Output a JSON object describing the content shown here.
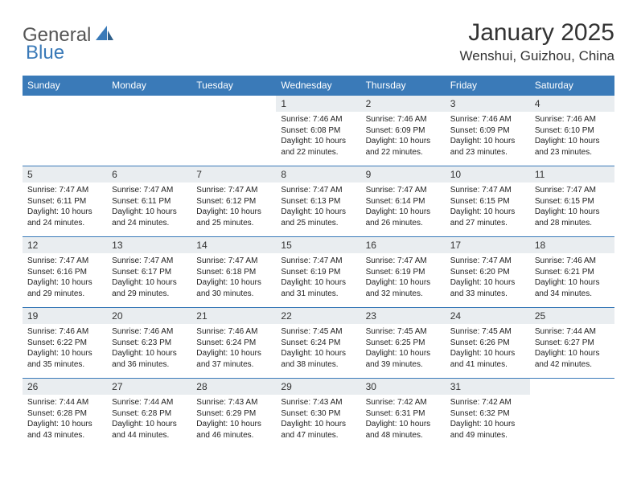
{
  "logo": {
    "text_general": "General",
    "text_blue": "Blue"
  },
  "title": "January 2025",
  "location": "Wenshui, Guizhou, China",
  "colors": {
    "header_bg": "#3a7ab8",
    "header_fg": "#ffffff",
    "daynum_bg": "#e9edf0",
    "rule": "#3a7ab8",
    "logo_gray": "#555555",
    "logo_blue": "#3a7ab8"
  },
  "day_headers": [
    "Sunday",
    "Monday",
    "Tuesday",
    "Wednesday",
    "Thursday",
    "Friday",
    "Saturday"
  ],
  "weeks": [
    [
      {
        "n": "",
        "t": ""
      },
      {
        "n": "",
        "t": ""
      },
      {
        "n": "",
        "t": ""
      },
      {
        "n": "1",
        "t": "Sunrise: 7:46 AM\nSunset: 6:08 PM\nDaylight: 10 hours and 22 minutes."
      },
      {
        "n": "2",
        "t": "Sunrise: 7:46 AM\nSunset: 6:09 PM\nDaylight: 10 hours and 22 minutes."
      },
      {
        "n": "3",
        "t": "Sunrise: 7:46 AM\nSunset: 6:09 PM\nDaylight: 10 hours and 23 minutes."
      },
      {
        "n": "4",
        "t": "Sunrise: 7:46 AM\nSunset: 6:10 PM\nDaylight: 10 hours and 23 minutes."
      }
    ],
    [
      {
        "n": "5",
        "t": "Sunrise: 7:47 AM\nSunset: 6:11 PM\nDaylight: 10 hours and 24 minutes."
      },
      {
        "n": "6",
        "t": "Sunrise: 7:47 AM\nSunset: 6:11 PM\nDaylight: 10 hours and 24 minutes."
      },
      {
        "n": "7",
        "t": "Sunrise: 7:47 AM\nSunset: 6:12 PM\nDaylight: 10 hours and 25 minutes."
      },
      {
        "n": "8",
        "t": "Sunrise: 7:47 AM\nSunset: 6:13 PM\nDaylight: 10 hours and 25 minutes."
      },
      {
        "n": "9",
        "t": "Sunrise: 7:47 AM\nSunset: 6:14 PM\nDaylight: 10 hours and 26 minutes."
      },
      {
        "n": "10",
        "t": "Sunrise: 7:47 AM\nSunset: 6:15 PM\nDaylight: 10 hours and 27 minutes."
      },
      {
        "n": "11",
        "t": "Sunrise: 7:47 AM\nSunset: 6:15 PM\nDaylight: 10 hours and 28 minutes."
      }
    ],
    [
      {
        "n": "12",
        "t": "Sunrise: 7:47 AM\nSunset: 6:16 PM\nDaylight: 10 hours and 29 minutes."
      },
      {
        "n": "13",
        "t": "Sunrise: 7:47 AM\nSunset: 6:17 PM\nDaylight: 10 hours and 29 minutes."
      },
      {
        "n": "14",
        "t": "Sunrise: 7:47 AM\nSunset: 6:18 PM\nDaylight: 10 hours and 30 minutes."
      },
      {
        "n": "15",
        "t": "Sunrise: 7:47 AM\nSunset: 6:19 PM\nDaylight: 10 hours and 31 minutes."
      },
      {
        "n": "16",
        "t": "Sunrise: 7:47 AM\nSunset: 6:19 PM\nDaylight: 10 hours and 32 minutes."
      },
      {
        "n": "17",
        "t": "Sunrise: 7:47 AM\nSunset: 6:20 PM\nDaylight: 10 hours and 33 minutes."
      },
      {
        "n": "18",
        "t": "Sunrise: 7:46 AM\nSunset: 6:21 PM\nDaylight: 10 hours and 34 minutes."
      }
    ],
    [
      {
        "n": "19",
        "t": "Sunrise: 7:46 AM\nSunset: 6:22 PM\nDaylight: 10 hours and 35 minutes."
      },
      {
        "n": "20",
        "t": "Sunrise: 7:46 AM\nSunset: 6:23 PM\nDaylight: 10 hours and 36 minutes."
      },
      {
        "n": "21",
        "t": "Sunrise: 7:46 AM\nSunset: 6:24 PM\nDaylight: 10 hours and 37 minutes."
      },
      {
        "n": "22",
        "t": "Sunrise: 7:45 AM\nSunset: 6:24 PM\nDaylight: 10 hours and 38 minutes."
      },
      {
        "n": "23",
        "t": "Sunrise: 7:45 AM\nSunset: 6:25 PM\nDaylight: 10 hours and 39 minutes."
      },
      {
        "n": "24",
        "t": "Sunrise: 7:45 AM\nSunset: 6:26 PM\nDaylight: 10 hours and 41 minutes."
      },
      {
        "n": "25",
        "t": "Sunrise: 7:44 AM\nSunset: 6:27 PM\nDaylight: 10 hours and 42 minutes."
      }
    ],
    [
      {
        "n": "26",
        "t": "Sunrise: 7:44 AM\nSunset: 6:28 PM\nDaylight: 10 hours and 43 minutes."
      },
      {
        "n": "27",
        "t": "Sunrise: 7:44 AM\nSunset: 6:28 PM\nDaylight: 10 hours and 44 minutes."
      },
      {
        "n": "28",
        "t": "Sunrise: 7:43 AM\nSunset: 6:29 PM\nDaylight: 10 hours and 46 minutes."
      },
      {
        "n": "29",
        "t": "Sunrise: 7:43 AM\nSunset: 6:30 PM\nDaylight: 10 hours and 47 minutes."
      },
      {
        "n": "30",
        "t": "Sunrise: 7:42 AM\nSunset: 6:31 PM\nDaylight: 10 hours and 48 minutes."
      },
      {
        "n": "31",
        "t": "Sunrise: 7:42 AM\nSunset: 6:32 PM\nDaylight: 10 hours and 49 minutes."
      },
      {
        "n": "",
        "t": ""
      }
    ]
  ]
}
